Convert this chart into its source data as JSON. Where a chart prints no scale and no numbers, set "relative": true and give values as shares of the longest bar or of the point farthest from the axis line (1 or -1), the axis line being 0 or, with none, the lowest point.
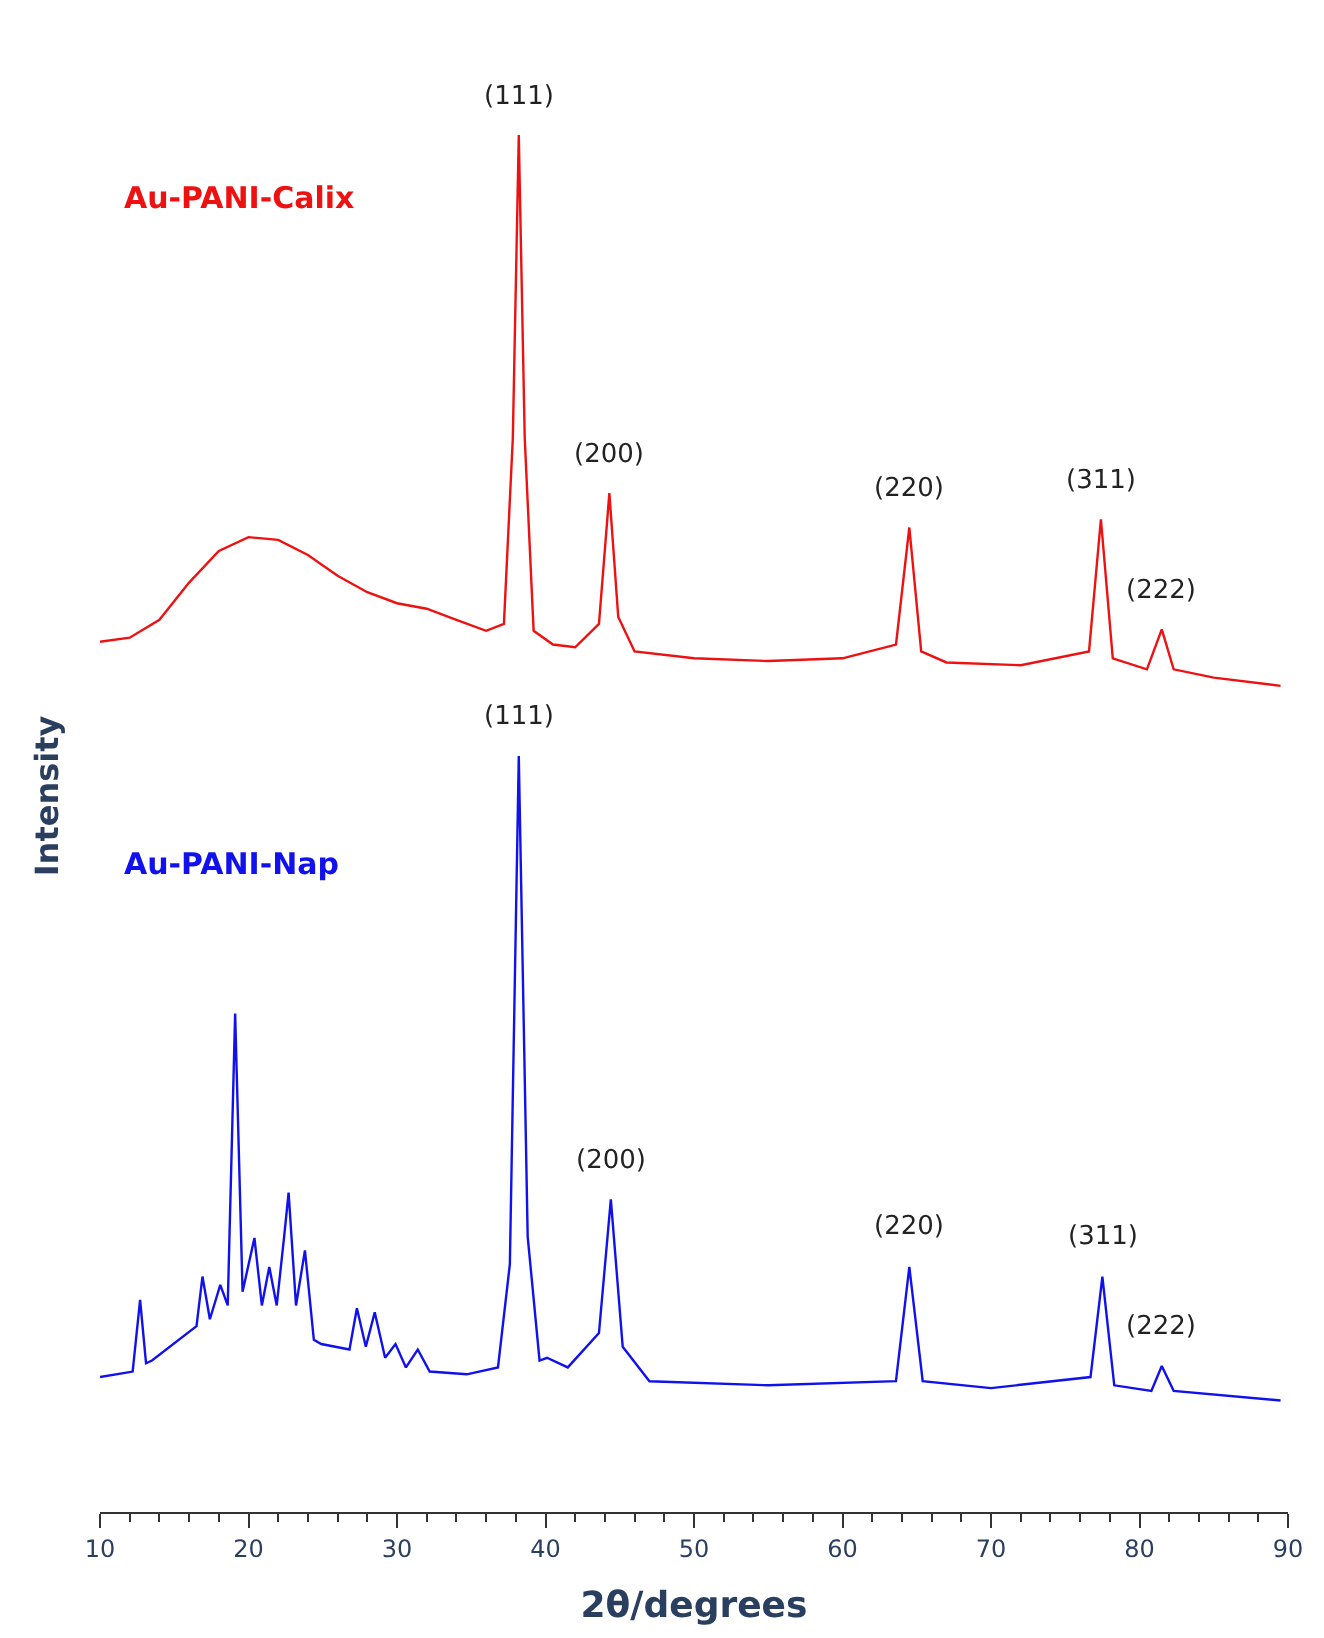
{
  "chart_data": {
    "type": "line",
    "relative": true,
    "xlabel": "2θ/degrees",
    "ylabel": "Intensity",
    "xlim": [
      10,
      90
    ],
    "xticks": [
      10,
      20,
      30,
      40,
      50,
      60,
      70,
      80,
      90,
      {
        "value": 12,
        "label": null
      },
      {
        "value": 14,
        "label": null
      },
      {
        "value": 16,
        "label": null
      },
      {
        "value": 18,
        "label": null
      },
      {
        "value": 22,
        "label": null
      },
      {
        "value": 24,
        "label": null
      },
      {
        "value": 26,
        "label": null
      },
      {
        "value": 28,
        "label": null
      },
      {
        "value": 32,
        "label": null
      },
      {
        "value": 34,
        "label": null
      },
      {
        "value": 36,
        "label": null
      },
      {
        "value": 38,
        "label": null
      },
      {
        "value": 42,
        "label": null
      },
      {
        "value": 44,
        "label": null
      },
      {
        "value": 46,
        "label": null
      },
      {
        "value": 48,
        "label": null
      },
      {
        "value": 52,
        "label": null
      },
      {
        "value": 54,
        "label": null
      },
      {
        "value": 56,
        "label": null
      },
      {
        "value": 58,
        "label": null
      },
      {
        "value": 62,
        "label": null
      },
      {
        "value": 64,
        "label": null
      },
      {
        "value": 66,
        "label": null
      },
      {
        "value": 68,
        "label": null
      },
      {
        "value": 72,
        "label": null
      },
      {
        "value": 74,
        "label": null
      },
      {
        "value": 76,
        "label": null
      },
      {
        "value": 78,
        "label": null
      },
      {
        "value": 82,
        "label": null
      },
      {
        "value": 84,
        "label": null
      },
      {
        "value": 86,
        "label": null
      },
      {
        "value": 88,
        "label": null
      }
    ],
    "tick_labels": "x",
    "legend": false,
    "marker": "none",
    "line_style": "solid",
    "series": [
      {
        "name": "Au-PANI-Calix",
        "color": "#ee1111",
        "x": [
          10.0,
          12.0,
          14.0,
          16.0,
          18.0,
          20.0,
          22.0,
          24.0,
          26.0,
          28.0,
          30.0,
          32.0,
          34.0,
          36.0,
          37.2,
          37.8,
          38.2,
          38.6,
          39.2,
          40.5,
          42.0,
          43.6,
          44.3,
          44.9,
          46.0,
          50.0,
          55.0,
          60.0,
          63.6,
          64.5,
          65.3,
          67.0,
          72.0,
          76.6,
          77.4,
          78.2,
          80.5,
          81.5,
          82.3,
          85.0,
          89.5
        ],
        "values": [
          0.632,
          0.635,
          0.648,
          0.675,
          0.698,
          0.708,
          0.706,
          0.695,
          0.68,
          0.668,
          0.66,
          0.656,
          0.648,
          0.64,
          0.645,
          0.78,
          1.0,
          0.78,
          0.64,
          0.63,
          0.628,
          0.645,
          0.74,
          0.65,
          0.625,
          0.62,
          0.618,
          0.62,
          0.63,
          0.715,
          0.625,
          0.617,
          0.615,
          0.625,
          0.721,
          0.62,
          0.612,
          0.641,
          0.612,
          0.606,
          0.6
        ]
      },
      {
        "name": "Au-PANI-Nap",
        "color": "#1111ee",
        "x": [
          10.0,
          12.2,
          12.7,
          13.1,
          13.5,
          16.5,
          16.9,
          17.4,
          18.1,
          18.6,
          19.1,
          19.6,
          20.4,
          20.9,
          21.4,
          21.9,
          22.4,
          22.7,
          23.2,
          23.8,
          24.4,
          24.9,
          26.8,
          27.3,
          27.9,
          28.5,
          29.2,
          29.9,
          30.6,
          31.4,
          32.2,
          34.7,
          36.8,
          37.6,
          38.2,
          38.8,
          39.6,
          40.1,
          41.5,
          43.6,
          44.4,
          45.2,
          47.0,
          55.0,
          63.6,
          64.5,
          65.4,
          70.0,
          76.7,
          77.5,
          78.3,
          80.8,
          81.5,
          82.3,
          89.5
        ],
        "values": [
          0.098,
          0.102,
          0.154,
          0.108,
          0.11,
          0.135,
          0.171,
          0.14,
          0.165,
          0.15,
          0.362,
          0.16,
          0.199,
          0.15,
          0.178,
          0.15,
          0.2,
          0.232,
          0.15,
          0.19,
          0.125,
          0.122,
          0.118,
          0.148,
          0.12,
          0.145,
          0.112,
          0.122,
          0.105,
          0.118,
          0.102,
          0.1,
          0.105,
          0.18,
          0.549,
          0.2,
          0.11,
          0.112,
          0.105,
          0.13,
          0.227,
          0.12,
          0.095,
          0.092,
          0.095,
          0.178,
          0.095,
          0.09,
          0.098,
          0.171,
          0.092,
          0.088,
          0.106,
          0.088,
          0.081
        ]
      }
    ],
    "annotations": [
      {
        "text": "(111)",
        "x": 38.2,
        "y": 1.0
      },
      {
        "text": "(200)",
        "x": 44.3,
        "y": 0.74
      },
      {
        "text": "(220)",
        "x": 64.5,
        "y": 0.715
      },
      {
        "text": "(311)",
        "x": 77.4,
        "y": 0.721
      },
      {
        "text": "(222)",
        "x": 81.5,
        "y": 0.641
      },
      {
        "text": "(111)",
        "x": 38.2,
        "y": 0.549
      },
      {
        "text": "(200)",
        "x": 44.4,
        "y": 0.227
      },
      {
        "text": "(220)",
        "x": 64.5,
        "y": 0.178
      },
      {
        "text": "(311)",
        "x": 77.5,
        "y": 0.171
      },
      {
        "text": "(222)",
        "x": 81.5,
        "y": 0.106
      }
    ]
  }
}
